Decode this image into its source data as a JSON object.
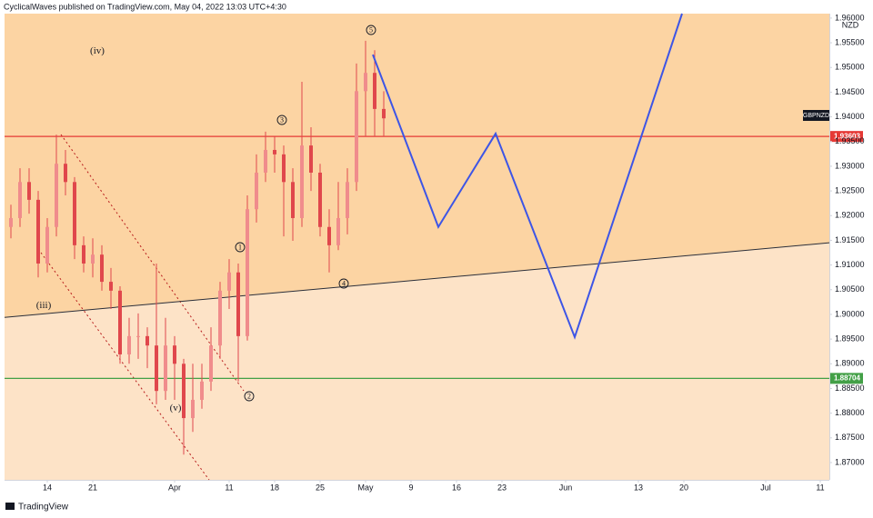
{
  "chart_data": {
    "type": "candlestick",
    "header": "CyclicalWaves published on TradingView.com, May 04, 2022 13:03 UTC+4:30",
    "symbol": "GBPNZD",
    "currency": "NZD",
    "footer": "TradingView",
    "color": "#e0474c",
    "x": [
      -4,
      -3,
      -2,
      -1,
      0,
      1,
      2,
      3,
      4,
      5,
      6,
      7,
      8,
      9,
      10,
      11,
      12,
      13,
      14,
      15,
      16,
      17,
      18,
      19,
      20,
      21,
      22,
      23,
      24,
      25,
      26,
      27,
      28,
      29,
      30,
      31,
      32,
      33,
      34,
      35,
      36,
      37
    ],
    "open": [
      1.9177,
      1.9195,
      1.9268,
      1.9232,
      1.9103,
      1.9177,
      1.9305,
      1.9268,
      1.914,
      1.9103,
      1.9121,
      1.9066,
      1.9048,
      1.8919,
      1.8956,
      1.8956,
      1.8937,
      1.8845,
      1.8937,
      1.89,
      1.879,
      1.8827,
      1.8864,
      1.8937,
      1.9048,
      1.9085,
      1.8956,
      1.9213,
      1.9287,
      1.9333,
      1.9324,
      1.9268,
      1.9195,
      1.9342,
      1.9287,
      1.9177,
      1.914,
      1.9195,
      1.9268,
      1.9452,
      1.9489,
      1.9416
    ],
    "high": [
      1.9222,
      1.9296,
      1.9296,
      1.925,
      1.9195,
      1.9364,
      1.9333,
      1.9278,
      1.9158,
      1.9154,
      1.914,
      1.9094,
      1.9057,
      1.8993,
      1.9002,
      1.8974,
      1.9103,
      1.8993,
      1.8956,
      1.891,
      1.89,
      1.89,
      1.8974,
      1.9066,
      1.9112,
      1.9103,
      1.9241,
      1.9324,
      1.937,
      1.936,
      1.9342,
      1.9296,
      1.9471,
      1.9379,
      1.9305,
      1.9213,
      1.9268,
      1.9296,
      1.9508,
      1.9554,
      1.9535,
      1.9452
    ],
    "low": [
      1.9154,
      1.9177,
      1.9204,
      1.9075,
      1.9085,
      1.9158,
      1.9241,
      1.9112,
      1.9085,
      1.9075,
      1.9048,
      1.9011,
      1.89,
      1.89,
      1.891,
      1.8891,
      1.8818,
      1.8827,
      1.8827,
      1.8716,
      1.8762,
      1.8809,
      1.8845,
      1.891,
      1.9011,
      1.8864,
      1.8947,
      1.9186,
      1.9268,
      1.9287,
      1.9158,
      1.9149,
      1.9177,
      1.925,
      1.9158,
      1.9085,
      1.913,
      1.9162,
      1.925,
      1.936,
      1.936,
      1.936
    ],
    "close": [
      1.9195,
      1.9268,
      1.9232,
      1.9103,
      1.9177,
      1.9305,
      1.9268,
      1.914,
      1.9103,
      1.9121,
      1.9066,
      1.9048,
      1.8919,
      1.8956,
      1.8956,
      1.8937,
      1.8845,
      1.8937,
      1.89,
      1.879,
      1.8827,
      1.8864,
      1.8937,
      1.9048,
      1.9085,
      1.8956,
      1.9213,
      1.9287,
      1.9333,
      1.9324,
      1.9268,
      1.9195,
      1.9342,
      1.9287,
      1.9177,
      1.914,
      1.9195,
      1.9268,
      1.9452,
      1.9489,
      1.9416,
      1.9397
    ],
    "projection": {
      "color": "#3d55e6",
      "x": [
        35.8,
        43,
        49.3,
        58,
        69.8
      ],
      "values": [
        1.9526,
        1.9177,
        1.9366,
        1.8954,
        1.9609
      ]
    },
    "trendline": {
      "color": "#2a2e39",
      "x": [
        -4.7,
        86
      ],
      "values": [
        1.8994,
        1.9145
      ]
    },
    "levels": [
      {
        "value": 1.93603,
        "color": "#e53935"
      },
      {
        "value": 1.88704,
        "color": "#43a047"
      }
    ],
    "annotations": [
      "(iv)",
      "(iii)",
      "(v)",
      "1",
      "2",
      "3",
      "4",
      "5"
    ],
    "xlim": [
      -4.7,
      86
    ],
    "ylim": [
      1.8665,
      1.9609
    ],
    "xticks": [
      {
        "value": 0,
        "label": "14"
      },
      {
        "value": 5,
        "label": "21"
      },
      {
        "value": 14,
        "label": "Apr"
      },
      {
        "value": 20,
        "label": "11"
      },
      {
        "value": 25,
        "label": "18"
      },
      {
        "value": 30,
        "label": "25"
      },
      {
        "value": 35,
        "label": "May"
      },
      {
        "value": 40,
        "label": "9"
      },
      {
        "value": 45,
        "label": "16"
      },
      {
        "value": 50,
        "label": "23"
      },
      {
        "value": 57,
        "label": "Jun"
      },
      {
        "value": 65,
        "label": "13"
      },
      {
        "value": 70,
        "label": "20"
      },
      {
        "value": 79,
        "label": "Jul"
      },
      {
        "value": 85,
        "label": "11"
      }
    ],
    "yticks": [
      {
        "value": 1.87,
        "label": "1.87000"
      },
      {
        "value": 1.875,
        "label": "1.87500"
      },
      {
        "value": 1.88,
        "label": "1.88000"
      },
      {
        "value": 1.885,
        "label": "1.88500"
      },
      {
        "value": 1.89,
        "label": "1.89000"
      },
      {
        "value": 1.895,
        "label": "1.89500"
      },
      {
        "value": 1.9,
        "label": "1.90000"
      },
      {
        "value": 1.905,
        "label": "1.90500"
      },
      {
        "value": 1.91,
        "label": "1.91000"
      },
      {
        "value": 1.915,
        "label": "1.91500"
      },
      {
        "value": 1.92,
        "label": "1.92000"
      },
      {
        "value": 1.925,
        "label": "1.92500"
      },
      {
        "value": 1.93,
        "label": "1.93000"
      },
      {
        "value": 1.935,
        "label": "1.93500"
      },
      {
        "value": 1.94,
        "label": "1.94000"
      },
      {
        "value": 1.945,
        "label": "1.94500"
      },
      {
        "value": 1.95,
        "label": "1.95000"
      },
      {
        "value": 1.955,
        "label": "1.95500"
      },
      {
        "value": 1.96,
        "label": "1.96000"
      }
    ]
  }
}
